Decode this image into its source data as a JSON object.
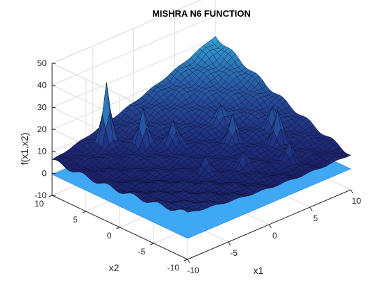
{
  "chart_data": {
    "type": "surface",
    "title": "MISHRA N6 FUNCTION",
    "xlabel": "x1",
    "ylabel": "x2",
    "zlabel": "f(x1,x2)",
    "xlim": [
      -10,
      10
    ],
    "ylim": [
      -10,
      10
    ],
    "zlim": [
      -10,
      50
    ],
    "x_ticks": [
      "-10",
      "-5",
      "0",
      "5",
      "10"
    ],
    "y_ticks": [
      "-10",
      "-5",
      "0",
      "5",
      "10"
    ],
    "z_ticks": [
      "-10",
      "0",
      "10",
      "20",
      "30",
      "40",
      "50"
    ],
    "grid": true,
    "surface_color": "#1a1a55",
    "contour_plane_color": "#3fa8f5",
    "contour_plane_z": -0.5,
    "approx_surface_values": {
      "corner_x1_-10_x2_10": 17,
      "corner_x1_10_x2_-10": 11,
      "corner_x1_10_x2_10": 27,
      "corner_x1_-10_x2_-10": 5,
      "peak_max": 30
    }
  }
}
